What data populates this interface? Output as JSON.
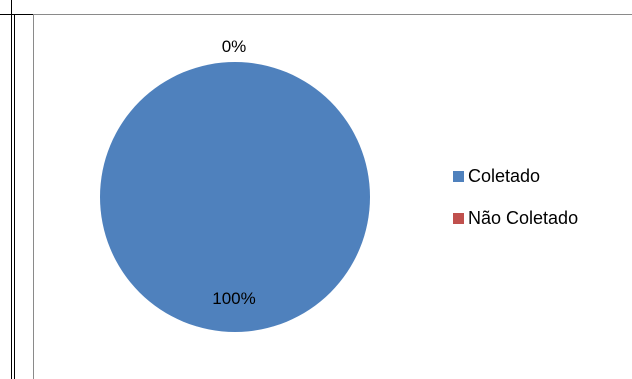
{
  "chart_data": {
    "type": "pie",
    "categories": [
      "Coletado",
      "Não Coletado"
    ],
    "values": [
      100,
      0
    ],
    "data_labels": [
      "100%",
      "0%"
    ],
    "colors": [
      "#4F81BD",
      "#C0504D"
    ],
    "legend_position": "right"
  }
}
